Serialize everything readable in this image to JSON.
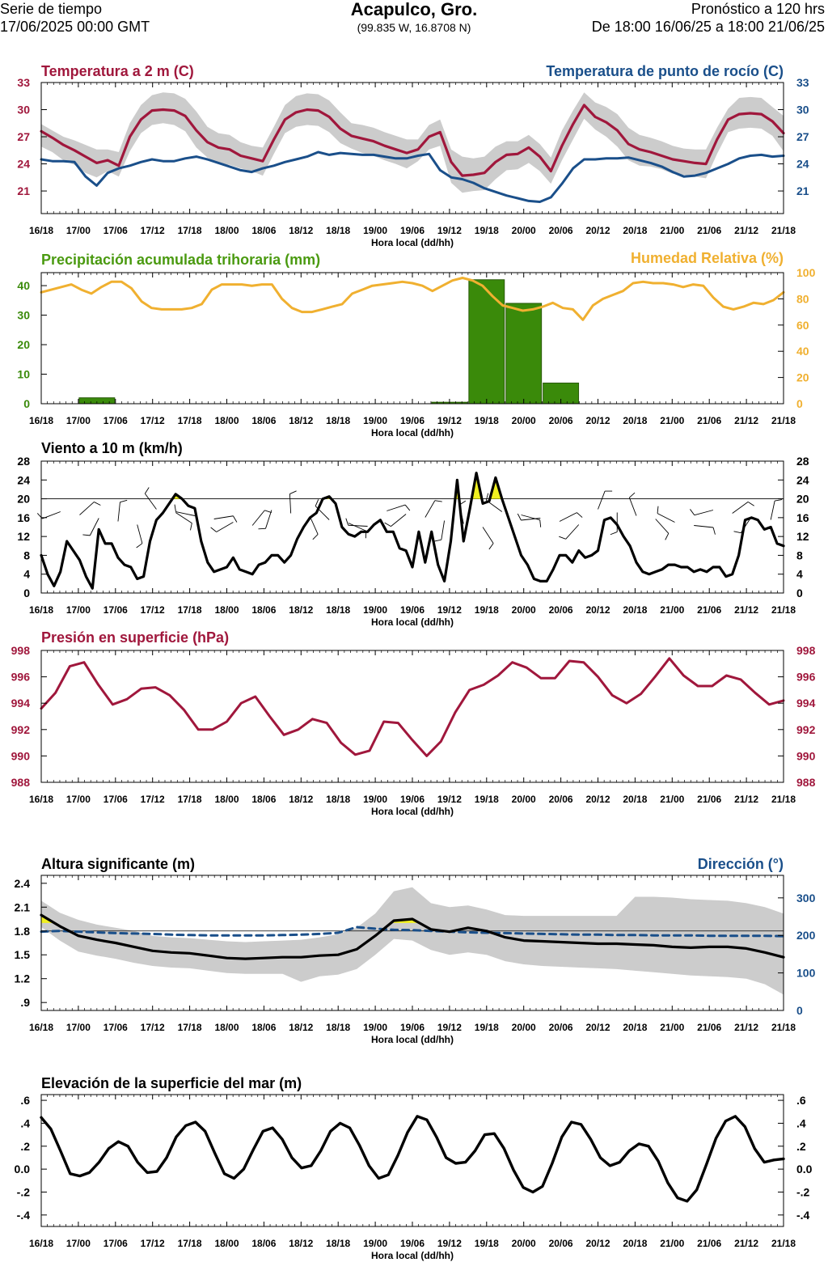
{
  "header": {
    "series_label": "Serie de tiempo",
    "run_time": "17/06/2025 00:00 GMT",
    "location": "Acapulco, Gro.",
    "coords": "(99.835 W, 16.8708 N)",
    "forecast_label": "Pronóstico a 120 hrs",
    "forecast_range": "De 18:00 16/06/25 a 18:00 21/06/25"
  },
  "colors": {
    "temperature": "#a0173c",
    "dewpoint": "#1a4f8a",
    "precip": "#3a8a0a",
    "precip_title": "#4a9a10",
    "humidity": "#f0b030",
    "pressure": "#a0173c",
    "wave_dir": "#1a4f8a",
    "band": "#cccccc",
    "highlight": "#f0f020"
  },
  "chart_data": [
    {
      "id": "temp",
      "type": "line",
      "title_left": "Temperatura a 2 m (C)",
      "title_right": "Temperatura de punto de rocío (C)",
      "xlabel": "Hora local (dd/hh)",
      "x_ticks": [
        "16/18",
        "17/00",
        "17/06",
        "17/12",
        "17/18",
        "18/00",
        "18/06",
        "18/12",
        "18/18",
        "19/00",
        "19/06",
        "19/12",
        "19/18",
        "20/00",
        "20/06",
        "20/12",
        "20/18",
        "21/00",
        "21/06",
        "21/12",
        "21/18"
      ],
      "ylim": [
        18.5,
        33
      ],
      "y_ticks_left": [
        "21",
        "24",
        "27",
        "30",
        "33"
      ],
      "y_ticks_right": [
        "21",
        "24",
        "27",
        "30",
        "33"
      ],
      "series": [
        {
          "name": "Temperatura a 2 m",
          "values": [
            27.6,
            26.9,
            26.1,
            25.5,
            24.8,
            24.1,
            24.4,
            23.8,
            27.0,
            28.9,
            29.9,
            30.0,
            29.9,
            29.3,
            27.7,
            26.4,
            25.8,
            25.6,
            24.9,
            24.6,
            24.3,
            26.7,
            28.9,
            29.7,
            30.0,
            29.9,
            29.2,
            27.9,
            27.1,
            26.8,
            26.5,
            26.0,
            25.6,
            25.2,
            25.6,
            27.0,
            27.5,
            24.2,
            22.7,
            22.8,
            23.0,
            24.2,
            25.0,
            25.1,
            25.8,
            24.8,
            23.2,
            26.0,
            28.4,
            30.5,
            29.2,
            28.6,
            27.7,
            26.2,
            25.6,
            25.3,
            24.9,
            24.5,
            24.3,
            24.1,
            24.0,
            26.7,
            28.9,
            29.5,
            29.6,
            29.5,
            28.7,
            27.4
          ]
        },
        {
          "name": "Temperatura de punto de rocío",
          "values": [
            24.5,
            24.3,
            24.3,
            24.2,
            22.6,
            21.6,
            23.0,
            23.5,
            23.8,
            24.2,
            24.5,
            24.3,
            24.3,
            24.6,
            24.8,
            24.5,
            24.1,
            23.7,
            23.3,
            23.1,
            23.5,
            23.8,
            24.2,
            24.5,
            24.8,
            25.3,
            25.0,
            25.2,
            25.1,
            25.0,
            25.0,
            24.8,
            24.6,
            24.6,
            24.9,
            25.1,
            23.3,
            22.5,
            22.3,
            21.9,
            21.3,
            20.9,
            20.5,
            20.2,
            19.9,
            19.8,
            20.3,
            21.8,
            23.5,
            24.5,
            24.5,
            24.6,
            24.6,
            24.7,
            24.4,
            24.1,
            23.7,
            23.1,
            22.6,
            22.7,
            23.0,
            23.5,
            24.0,
            24.6,
            24.9,
            25.0,
            24.8,
            24.9
          ]
        }
      ],
      "band_upper": [
        28.4,
        27.7,
        27.0,
        26.6,
        26.1,
        25.6,
        25.6,
        25.3,
        28.5,
        30.5,
        31.6,
        31.9,
        31.8,
        31.2,
        29.8,
        28.1,
        27.4,
        27.2,
        26.4,
        26.0,
        25.8,
        28.1,
        30.5,
        31.5,
        31.8,
        31.7,
        31.0,
        29.7,
        28.5,
        28.3,
        28.0,
        27.5,
        27.1,
        26.7,
        26.7,
        28.3,
        28.9,
        25.6,
        24.8,
        24.6,
        24.8,
        25.9,
        26.5,
        26.5,
        27.2,
        26.2,
        24.7,
        27.7,
        29.9,
        31.9,
        30.8,
        30.3,
        29.5,
        28.0,
        27.2,
        26.9,
        26.5,
        26.0,
        25.7,
        25.6,
        25.6,
        28.0,
        30.1,
        31.3,
        31.4,
        31.3,
        30.3,
        29.3
      ],
      "band_lower": [
        25.9,
        25.3,
        24.4,
        23.9,
        23.0,
        22.5,
        23.2,
        22.6,
        25.4,
        27.4,
        28.3,
        28.5,
        28.3,
        27.6,
        25.8,
        24.7,
        24.0,
        23.9,
        23.5,
        23.2,
        22.7,
        25.1,
        27.4,
        28.1,
        28.3,
        28.2,
        27.5,
        26.3,
        25.7,
        25.2,
        24.9,
        24.4,
        24.0,
        23.5,
        24.3,
        25.6,
        26.0,
        21.9,
        20.8,
        21.0,
        21.1,
        22.3,
        23.3,
        23.4,
        24.1,
        23.2,
        21.8,
        24.4,
        26.7,
        29.0,
        27.8,
        27.0,
        25.9,
        24.4,
        23.8,
        23.7,
        23.4,
        22.9,
        22.8,
        22.6,
        22.4,
        25.1,
        27.5,
        27.9,
        28.0,
        27.9,
        27.1,
        25.4
      ]
    },
    {
      "id": "precip",
      "type": "bar",
      "title_left": "Precipitación acumulada trihoraria (mm)",
      "title_right": "Humedad Relativa (%)",
      "xlabel": "Hora local (dd/hh)",
      "x_ticks": [
        "16/18",
        "17/00",
        "17/06",
        "17/12",
        "17/18",
        "18/00",
        "18/06",
        "18/12",
        "18/18",
        "19/00",
        "19/06",
        "19/12",
        "19/18",
        "20/00",
        "20/06",
        "20/12",
        "20/18",
        "21/00",
        "21/06",
        "21/12",
        "21/18"
      ],
      "ylim": [
        0,
        44.4
      ],
      "ylim_right": [
        0,
        100
      ],
      "y_ticks_left": [
        "0",
        "10",
        "20",
        "30",
        "40"
      ],
      "y_ticks_right": [
        "0",
        "20",
        "40",
        "60",
        "80",
        "100"
      ],
      "bars": [
        {
          "start_hour": 6,
          "end_hour": 12,
          "value": 2
        },
        {
          "start_hour": 63,
          "end_hour": 69,
          "value": 0.5
        },
        {
          "start_hour": 69,
          "end_hour": 75,
          "value": 42
        },
        {
          "start_hour": 75,
          "end_hour": 81,
          "value": 34
        },
        {
          "start_hour": 81,
          "end_hour": 87,
          "value": 7
        }
      ],
      "humidity": [
        85,
        87,
        89,
        91,
        87,
        84,
        89,
        93,
        93,
        88,
        78,
        73,
        72,
        72,
        72,
        73,
        76,
        87,
        91,
        91,
        91,
        90,
        91,
        91,
        80,
        73,
        70,
        70,
        72,
        74,
        76,
        84,
        87,
        90,
        91,
        92,
        93,
        92,
        90,
        86,
        90,
        94,
        96,
        94,
        90,
        82,
        75,
        73,
        71,
        72,
        74,
        77,
        73,
        72,
        64,
        75,
        80,
        83,
        86,
        92,
        93,
        92,
        92,
        91,
        89,
        91,
        90,
        81,
        74,
        72,
        74,
        77,
        76,
        79,
        85
      ]
    },
    {
      "id": "wind",
      "type": "line",
      "title_left": "Viento a 10 m (km/h)",
      "xlabel": "Hora local (dd/hh)",
      "x_ticks": [
        "16/18",
        "17/00",
        "17/06",
        "17/12",
        "17/18",
        "18/00",
        "18/06",
        "18/12",
        "18/18",
        "19/00",
        "19/06",
        "19/12",
        "19/18",
        "20/00",
        "20/06",
        "20/12",
        "20/18",
        "21/00",
        "21/06",
        "21/12",
        "21/18"
      ],
      "ylim": [
        0,
        28
      ],
      "y_ticks_left": [
        "0",
        "4",
        "8",
        "12",
        "16",
        "20",
        "24",
        "28"
      ],
      "y_ticks_right": [
        "0",
        "4",
        "8",
        "12",
        "16",
        "20",
        "24",
        "28"
      ],
      "reference_line": 20,
      "series": [
        {
          "name": "Viento a 10 m",
          "values": [
            8,
            4,
            1.5,
            4.5,
            11,
            9,
            7,
            3.5,
            1,
            13.5,
            10.5,
            10.5,
            7.5,
            6,
            5.5,
            3,
            3.5,
            11,
            15.5,
            17,
            19,
            21,
            20,
            18.5,
            18,
            11,
            6.5,
            4.5,
            5,
            5.5,
            7.5,
            5,
            4.5,
            4,
            6,
            6.5,
            8,
            8,
            6.5,
            8,
            11.5,
            14,
            16,
            17,
            20,
            20.5,
            19,
            14,
            12.5,
            12,
            13,
            13,
            14.5,
            15.5,
            13,
            13,
            9.5,
            9,
            5.5,
            13,
            6.5,
            13,
            6,
            2.5,
            11,
            24,
            11,
            18,
            25.5,
            19,
            19.5,
            24.5,
            20,
            16,
            12,
            8,
            6,
            3,
            2.5,
            2.5,
            5,
            8,
            8,
            6.5,
            9,
            7.5,
            8,
            9,
            15.5,
            16,
            14.5,
            12,
            10,
            6.5,
            4.5,
            4,
            4.5,
            5,
            6,
            6,
            5.5,
            5.5,
            4.5,
            5,
            4.5,
            5.5,
            5.5,
            3.5,
            4,
            8,
            15.5,
            16,
            15.5,
            13.5,
            14,
            10.5,
            10
          ]
        }
      ]
    },
    {
      "id": "pressure",
      "type": "line",
      "title_left": "Presión en superficie (hPa)",
      "xlabel": "Hora local (dd/hh)",
      "x_ticks": [
        "16/18",
        "17/00",
        "17/06",
        "17/12",
        "17/18",
        "18/00",
        "18/06",
        "18/12",
        "18/18",
        "19/00",
        "19/06",
        "19/12",
        "19/18",
        "20/00",
        "20/06",
        "20/12",
        "20/18",
        "21/00",
        "21/06",
        "21/12",
        "21/18"
      ],
      "ylim": [
        988,
        998
      ],
      "y_ticks_left": [
        "988",
        "990",
        "992",
        "994",
        "996",
        "998"
      ],
      "y_ticks_right": [
        "988",
        "990",
        "992",
        "994",
        "996",
        "998"
      ],
      "series": [
        {
          "name": "Presión en superficie",
          "values": [
            993.6,
            994.8,
            996.8,
            997.1,
            995.4,
            993.9,
            994.3,
            995.1,
            995.2,
            994.6,
            993.5,
            992.0,
            992.0,
            992.6,
            994.0,
            994.5,
            993.0,
            991.6,
            992.0,
            992.8,
            992.5,
            991.0,
            990.1,
            990.4,
            992.6,
            992.5,
            991.2,
            990.0,
            991.1,
            993.3,
            995.0,
            995.4,
            996.1,
            997.1,
            996.7,
            995.9,
            995.9,
            997.2,
            997.1,
            996.0,
            994.6,
            994.0,
            994.7,
            996.0,
            997.4,
            996.1,
            995.3,
            995.3,
            996.1,
            995.8,
            994.8,
            993.9,
            994.2
          ]
        }
      ]
    },
    {
      "id": "wave",
      "type": "line",
      "title_left": "Altura significante (m)",
      "title_right": "Dirección (°)",
      "xlabel": "Hora local (dd/hh)",
      "x_ticks": [
        "16/18",
        "17/00",
        "17/06",
        "17/12",
        "17/18",
        "18/00",
        "18/06",
        "18/12",
        "18/18",
        "19/00",
        "19/06",
        "19/12",
        "19/18",
        "20/00",
        "20/06",
        "20/12",
        "20/18",
        "21/00",
        "21/06",
        "21/12",
        "21/18"
      ],
      "ylim": [
        0.8,
        2.5
      ],
      "ylim_right": [
        0,
        360
      ],
      "y_ticks_left": [
        ".9",
        "1.2",
        "1.5",
        "1.8",
        "2.1",
        "2.4"
      ],
      "y_ticks_right": [
        "0",
        "100",
        "200",
        "300"
      ],
      "reference_line": 1.8,
      "series": [
        {
          "name": "Altura significante",
          "values": [
            2.0,
            1.86,
            1.74,
            1.69,
            1.65,
            1.6,
            1.55,
            1.53,
            1.52,
            1.49,
            1.46,
            1.45,
            1.46,
            1.47,
            1.47,
            1.49,
            1.5,
            1.57,
            1.74,
            1.93,
            1.95,
            1.82,
            1.79,
            1.84,
            1.8,
            1.72,
            1.68,
            1.67,
            1.66,
            1.65,
            1.64,
            1.64,
            1.63,
            1.62,
            1.6,
            1.59,
            1.6,
            1.6,
            1.58,
            1.53,
            1.47
          ]
        },
        {
          "name": "Dirección",
          "values": [
            210,
            212,
            210,
            208,
            206,
            205,
            204,
            202,
            201,
            200,
            200,
            200,
            200,
            201,
            202,
            204,
            207,
            222,
            218,
            215,
            214,
            212,
            210,
            208,
            207,
            206,
            205,
            204,
            203,
            202,
            202,
            201,
            201,
            200,
            200,
            200,
            199,
            199,
            199,
            199,
            198
          ]
        }
      ],
      "band_upper": [
        2.18,
        2.03,
        1.94,
        1.88,
        1.84,
        1.8,
        1.74,
        1.72,
        1.71,
        1.69,
        1.67,
        1.66,
        1.67,
        1.68,
        1.69,
        1.72,
        1.76,
        1.84,
        2.02,
        2.3,
        2.35,
        2.15,
        2.1,
        2.12,
        2.07,
        2.0,
        1.99,
        1.99,
        1.99,
        1.99,
        1.99,
        1.99,
        2.23,
        2.23,
        2.22,
        2.2,
        2.19,
        2.18,
        2.15,
        2.1,
        2.02
      ],
      "band_lower": [
        1.85,
        1.68,
        1.54,
        1.49,
        1.45,
        1.4,
        1.36,
        1.34,
        1.33,
        1.3,
        1.27,
        1.26,
        1.26,
        1.26,
        1.16,
        1.23,
        1.25,
        1.32,
        1.5,
        1.7,
        1.68,
        1.56,
        1.5,
        1.53,
        1.5,
        1.42,
        1.38,
        1.36,
        1.35,
        1.34,
        1.33,
        1.32,
        1.3,
        1.28,
        1.26,
        1.24,
        1.23,
        1.22,
        1.2,
        1.13,
        1.0
      ]
    },
    {
      "id": "sea",
      "type": "line",
      "title_left": "Elevación de la superficie del mar (m)",
      "xlabel": "Hora local (dd/hh)",
      "x_ticks": [
        "16/18",
        "17/00",
        "17/06",
        "17/12",
        "17/18",
        "18/00",
        "18/06",
        "18/12",
        "18/18",
        "19/00",
        "19/06",
        "19/12",
        "19/18",
        "20/00",
        "20/06",
        "20/12",
        "20/18",
        "21/00",
        "21/06",
        "21/12",
        "21/18"
      ],
      "ylim": [
        -0.5,
        0.65
      ],
      "y_ticks_left": [
        "-.4",
        "-.2",
        "0.0",
        ".2",
        ".4",
        ".6"
      ],
      "y_ticks_right": [
        "-.4",
        "-.2",
        "0.0",
        ".2",
        ".4",
        ".6"
      ],
      "series": [
        {
          "name": "Elevación de la superficie del mar",
          "values": [
            0.45,
            0.35,
            0.16,
            -0.04,
            -0.06,
            -0.03,
            0.06,
            0.18,
            0.24,
            0.2,
            0.06,
            -0.03,
            -0.02,
            0.1,
            0.28,
            0.38,
            0.41,
            0.33,
            0.14,
            -0.04,
            -0.08,
            0.0,
            0.17,
            0.33,
            0.36,
            0.26,
            0.1,
            0.01,
            0.03,
            0.16,
            0.33,
            0.4,
            0.36,
            0.21,
            0.03,
            -0.08,
            -0.05,
            0.12,
            0.32,
            0.46,
            0.43,
            0.28,
            0.1,
            0.05,
            0.06,
            0.16,
            0.3,
            0.31,
            0.18,
            -0.01,
            -0.16,
            -0.2,
            -0.15,
            0.05,
            0.28,
            0.41,
            0.39,
            0.26,
            0.1,
            0.03,
            0.06,
            0.16,
            0.22,
            0.2,
            0.07,
            -0.12,
            -0.25,
            -0.28,
            -0.18,
            0.04,
            0.27,
            0.42,
            0.46,
            0.37,
            0.18,
            0.06,
            0.08,
            0.09
          ]
        }
      ]
    }
  ]
}
